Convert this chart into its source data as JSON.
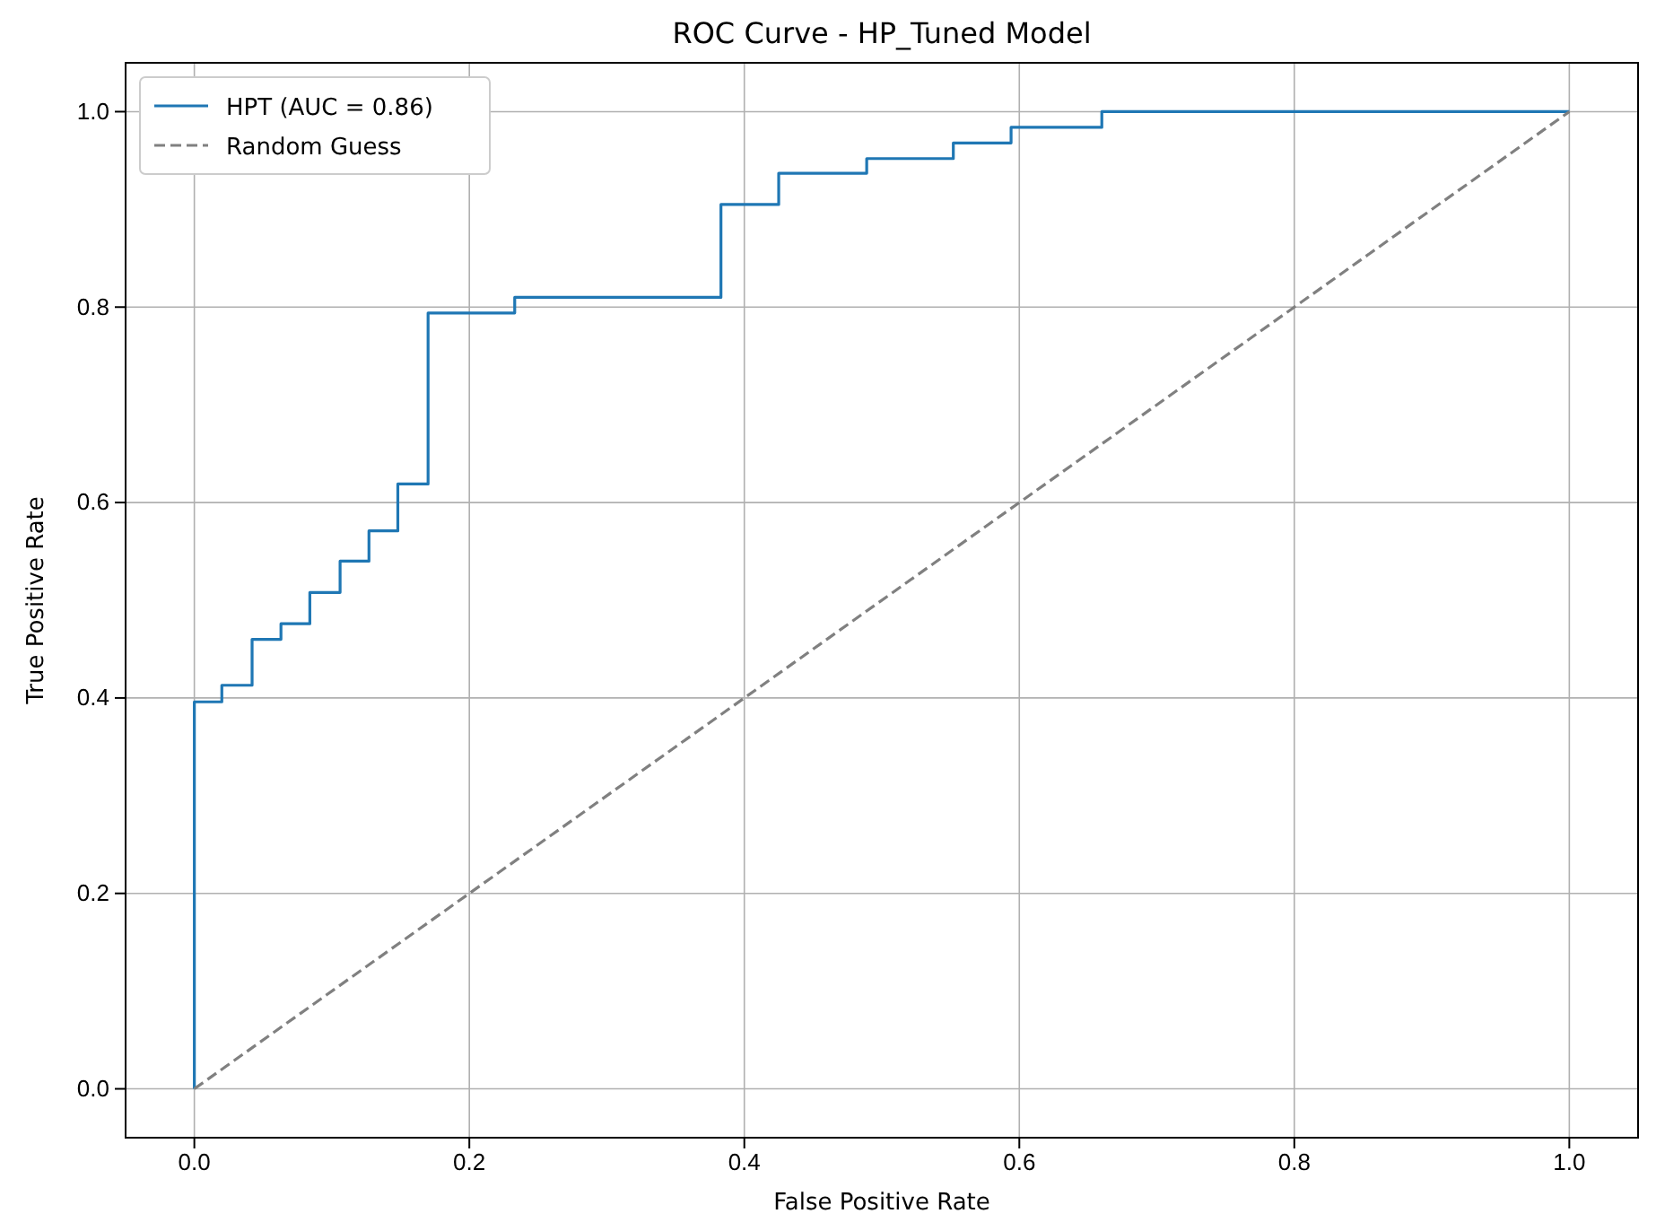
{
  "chart_data": {
    "type": "step",
    "title": "ROC Curve - HP_Tuned Model",
    "xlabel": "False Positive Rate",
    "ylabel": "True Positive Rate",
    "xlim": [
      -0.05,
      1.05
    ],
    "ylim": [
      -0.05,
      1.05
    ],
    "xticks": [
      {
        "value": 0,
        "label": "0.0"
      },
      {
        "value": 0.2,
        "label": "0.2"
      },
      {
        "value": 0.4,
        "label": "0.4"
      },
      {
        "value": 0.6,
        "label": "0.6"
      },
      {
        "value": 0.8,
        "label": "0.8"
      },
      {
        "value": 1,
        "label": "1.0"
      }
    ],
    "yticks": [
      {
        "value": 0,
        "label": "0.0"
      },
      {
        "value": 0.2,
        "label": "0.2"
      },
      {
        "value": 0.4,
        "label": "0.4"
      },
      {
        "value": 0.6,
        "label": "0.6"
      },
      {
        "value": 0.8,
        "label": "0.8"
      },
      {
        "value": 1,
        "label": "1.0"
      }
    ],
    "grid": true,
    "legend": "top left",
    "series": [
      {
        "name": "HPT (AUC = 0.86)",
        "color": "#1f77b4",
        "type": "step",
        "line_style": "solid",
        "x": [
          0,
          0,
          0.02,
          0.042,
          0.063,
          0.084,
          0.106,
          0.127,
          0.148,
          0.17,
          0.233,
          0.383,
          0.425,
          0.489,
          0.552,
          0.594,
          0.66,
          1
        ],
        "values": [
          0,
          0.396,
          0.413,
          0.46,
          0.476,
          0.508,
          0.54,
          0.571,
          0.619,
          0.794,
          0.81,
          0.905,
          0.937,
          0.952,
          0.968,
          0.984,
          1,
          1
        ]
      },
      {
        "name": "Random Guess",
        "color": "#808080",
        "type": "line",
        "line_style": "dashed",
        "x": [
          0,
          1
        ],
        "values": [
          0,
          1
        ]
      }
    ]
  }
}
